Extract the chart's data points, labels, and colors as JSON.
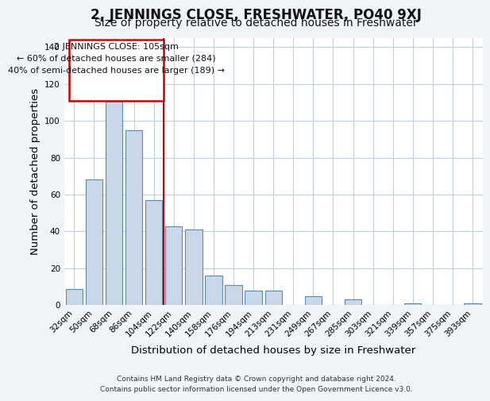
{
  "title": "2, JENNINGS CLOSE, FRESHWATER, PO40 9XJ",
  "subtitle": "Size of property relative to detached houses in Freshwater",
  "xlabel": "Distribution of detached houses by size in Freshwater",
  "ylabel": "Number of detached properties",
  "bar_labels": [
    "32sqm",
    "50sqm",
    "68sqm",
    "86sqm",
    "104sqm",
    "122sqm",
    "140sqm",
    "158sqm",
    "176sqm",
    "194sqm",
    "213sqm",
    "231sqm",
    "249sqm",
    "267sqm",
    "285sqm",
    "303sqm",
    "321sqm",
    "339sqm",
    "357sqm",
    "375sqm",
    "393sqm"
  ],
  "bar_values": [
    9,
    68,
    112,
    95,
    57,
    43,
    41,
    16,
    11,
    8,
    8,
    0,
    5,
    0,
    3,
    0,
    0,
    1,
    0,
    0,
    1
  ],
  "bar_color": "#c8d8e8",
  "bar_edge_color": "#5a8ab0",
  "vline_x": 4.5,
  "vline_color": "#cc0000",
  "annotation_box_text": "2 JENNINGS CLOSE: 105sqm\n← 60% of detached houses are smaller (284)\n40% of semi-detached houses are larger (189) →",
  "ylim": [
    0,
    145
  ],
  "yticks": [
    0,
    20,
    40,
    60,
    80,
    100,
    120,
    140
  ],
  "background_color": "#f0f4f8",
  "plot_bg_color": "#ffffff",
  "grid_color": "#c0cfe0",
  "title_fontsize": 12,
  "subtitle_fontsize": 10,
  "axis_label_fontsize": 9.5,
  "tick_fontsize": 7.5,
  "footer_text": "Contains HM Land Registry data © Crown copyright and database right 2024.\nContains public sector information licensed under the Open Government Licence v3.0."
}
